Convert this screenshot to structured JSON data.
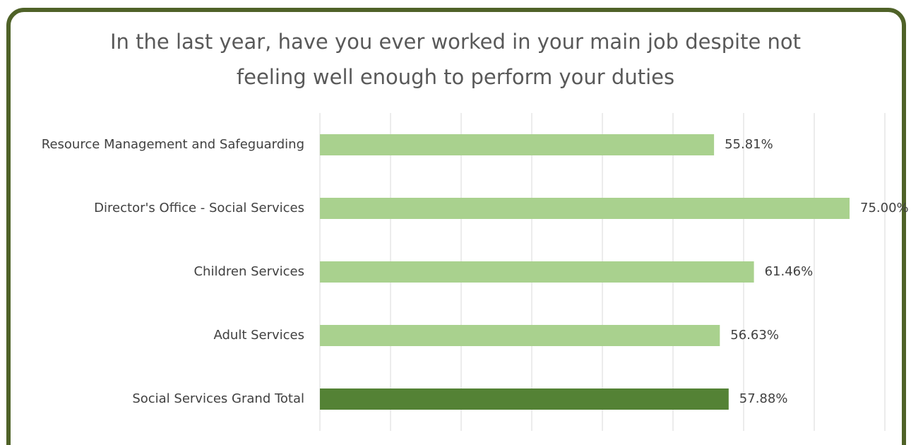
{
  "chart_data": {
    "type": "bar",
    "orientation": "horizontal",
    "title": "In the last year, have you ever worked in your main job despite not feeling well enough to perform your duties",
    "categories": [
      "Resource Management and Safeguarding",
      "Director's Office - Social Services",
      "Children Services",
      "Adult Services",
      "Social Services Grand Total"
    ],
    "values": [
      55.81,
      75.0,
      61.46,
      56.63,
      57.88
    ],
    "value_labels": [
      "55.81%",
      "75.00%",
      "61.46%",
      "56.63%",
      "57.88%"
    ],
    "colors": [
      "#a9d18e",
      "#a9d18e",
      "#a9d18e",
      "#a9d18e",
      "#548235"
    ],
    "xlim": [
      0,
      80
    ],
    "xticks": [
      0,
      10,
      20,
      30,
      40,
      50,
      60,
      70,
      80
    ],
    "grid": true
  }
}
